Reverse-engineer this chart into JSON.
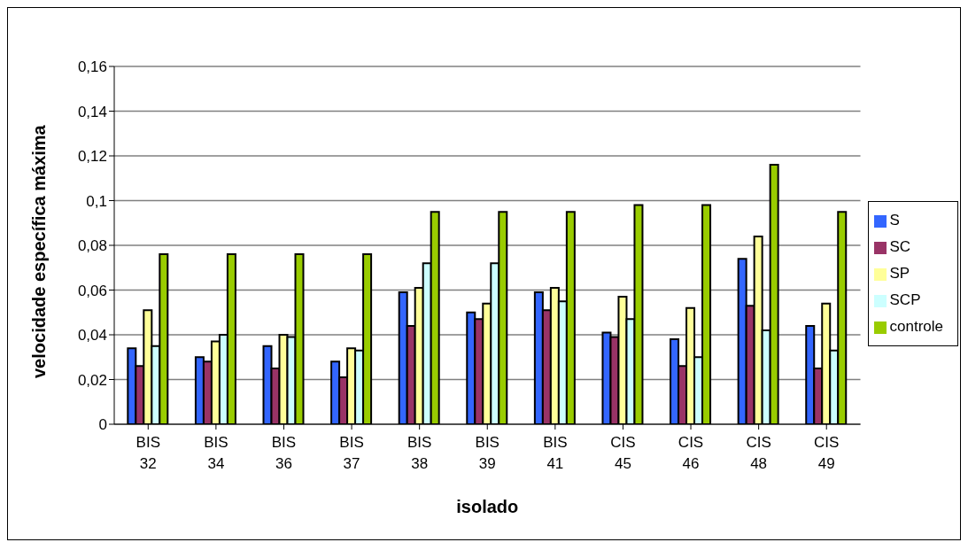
{
  "chart_data": {
    "type": "bar",
    "xlabel": "isolado",
    "ylabel": "velocidade específica máxima",
    "categories": [
      "BIS 32",
      "BIS 34",
      "BIS 36",
      "BIS 37",
      "BIS 38",
      "BIS 39",
      "BIS 41",
      "CIS 45",
      "CIS 46",
      "CIS 48",
      "CIS 49"
    ],
    "series": [
      {
        "name": "S",
        "color": "#3366ff",
        "values": [
          0.034,
          0.03,
          0.035,
          0.028,
          0.059,
          0.05,
          0.059,
          0.041,
          0.038,
          0.074,
          0.044
        ]
      },
      {
        "name": "SC",
        "color": "#993366",
        "values": [
          0.026,
          0.028,
          0.025,
          0.021,
          0.044,
          0.047,
          0.051,
          0.039,
          0.026,
          0.053,
          0.025
        ]
      },
      {
        "name": "SP",
        "color": "#ffff99",
        "values": [
          0.051,
          0.037,
          0.04,
          0.034,
          0.061,
          0.054,
          0.061,
          0.057,
          0.052,
          0.084,
          0.054
        ]
      },
      {
        "name": "SCP",
        "color": "#ccffff",
        "values": [
          0.035,
          0.04,
          0.039,
          0.033,
          0.072,
          0.072,
          0.055,
          0.047,
          0.03,
          0.042,
          0.033
        ]
      },
      {
        "name": "controle",
        "color": "#99cc00",
        "values": [
          0.076,
          0.076,
          0.076,
          0.076,
          0.095,
          0.095,
          0.095,
          0.098,
          0.098,
          0.116,
          0.095
        ]
      }
    ],
    "ylim": [
      0,
      0.16
    ],
    "yticks": [
      {
        "value": 0,
        "label": "0"
      },
      {
        "value": 0.02,
        "label": "0,02"
      },
      {
        "value": 0.04,
        "label": "0,04"
      },
      {
        "value": 0.06,
        "label": "0,06"
      },
      {
        "value": 0.08,
        "label": "0,08"
      },
      {
        "value": 0.1,
        "label": "0,1"
      },
      {
        "value": 0.12,
        "label": "0,12"
      },
      {
        "value": 0.14,
        "label": "0,14"
      },
      {
        "value": 0.16,
        "label": "0,16"
      }
    ],
    "grid": "y",
    "legend": "right"
  }
}
